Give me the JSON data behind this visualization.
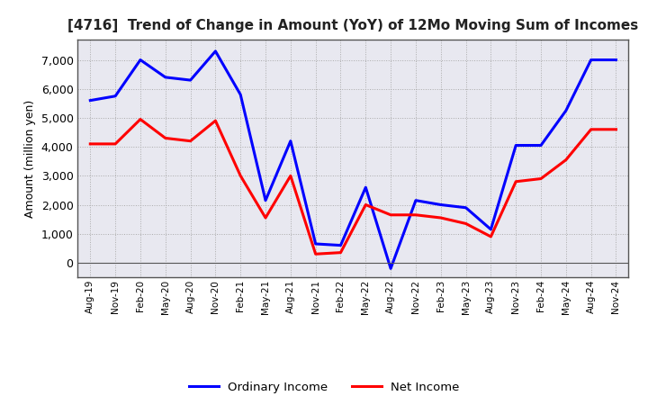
{
  "title": "[4716]  Trend of Change in Amount (YoY) of 12Mo Moving Sum of Incomes",
  "ylabel": "Amount (million yen)",
  "background_color": "#ffffff",
  "plot_bg_color": "#e8e8f0",
  "grid_color": "#aaaaaa",
  "legend_labels": [
    "Ordinary Income",
    "Net Income"
  ],
  "line_colors": [
    "#0000ff",
    "#ff0000"
  ],
  "x_labels": [
    "Aug-19",
    "Nov-19",
    "Feb-20",
    "May-20",
    "Aug-20",
    "Nov-20",
    "Feb-21",
    "May-21",
    "Aug-21",
    "Nov-21",
    "Feb-22",
    "May-22",
    "Aug-22",
    "Nov-22",
    "Feb-23",
    "May-23",
    "Aug-23",
    "Nov-23",
    "Feb-24",
    "May-24",
    "Aug-24",
    "Nov-24"
  ],
  "ordinary_income": [
    5600,
    5750,
    7000,
    6400,
    6300,
    7300,
    5800,
    2150,
    4200,
    650,
    600,
    2600,
    -200,
    2150,
    2000,
    1900,
    1150,
    4050,
    4050,
    5250,
    7000,
    7000
  ],
  "net_income": [
    4100,
    4100,
    4950,
    4300,
    4200,
    4900,
    3000,
    1550,
    3000,
    300,
    350,
    2000,
    1650,
    1650,
    1550,
    1350,
    900,
    2800,
    2900,
    3550,
    4600,
    4600
  ],
  "ylim": [
    -500,
    7700
  ],
  "yticks": [
    0,
    1000,
    2000,
    3000,
    4000,
    5000,
    6000,
    7000
  ]
}
